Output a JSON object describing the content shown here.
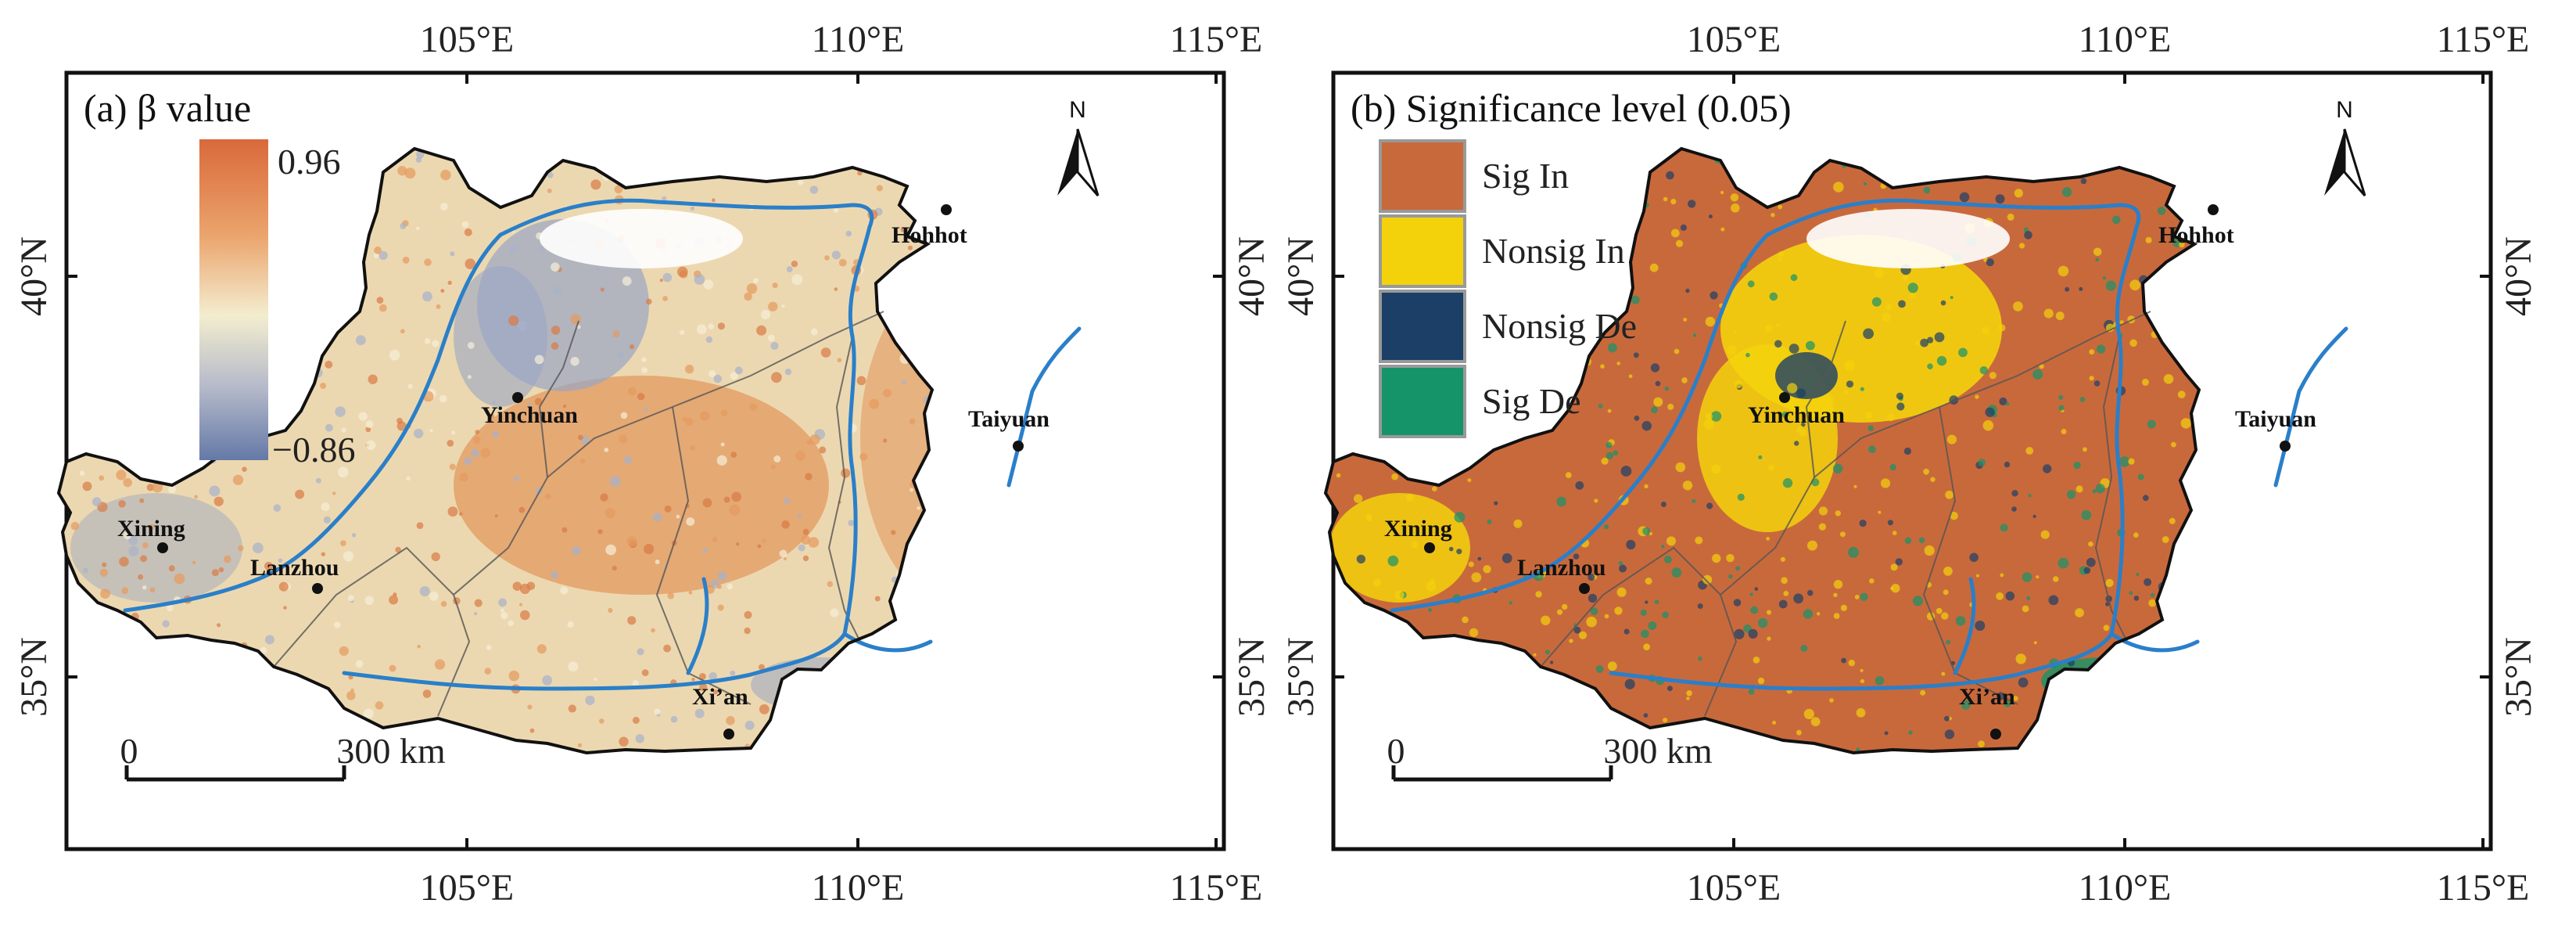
{
  "panels": [
    {
      "title": "(a) β value",
      "legend": {
        "type": "gradient",
        "max_label": "0.96",
        "min_label": "−0.86"
      },
      "colors": {
        "high": "#d9693a",
        "mid": "#f3edcf",
        "low": "#6479a6",
        "fill": "#ecd8b0",
        "patch": "#e39a60",
        "patch_low": "#9aa7c4"
      }
    },
    {
      "title": "(b) Significance level (0.05)",
      "legend": {
        "type": "categorical",
        "items": [
          {
            "label": "Sig In",
            "color": "#c8693c"
          },
          {
            "label": "Nonsig In",
            "color": "#f3d20c"
          },
          {
            "label": "Nonsig De",
            "color": "#1b3f66"
          },
          {
            "label": "Sig De",
            "color": "#159369"
          }
        ]
      },
      "colors": {
        "fill": "#c8693c",
        "patch": "#f3d20c",
        "patch_low": "#1b3f66"
      }
    }
  ],
  "axes": {
    "lon_labels": [
      "105°E",
      "110°E",
      "115°E"
    ],
    "lat_labels": [
      "40°N",
      "35°N"
    ]
  },
  "cities": [
    "Hohhot",
    "Yinchuan",
    "Taiyuan",
    "Xining",
    "Lanzhou",
    "Xi’an"
  ],
  "scale_bar": {
    "start": "0",
    "end": "300 km"
  },
  "north_arrow": {
    "label": "N"
  },
  "colors": {
    "river": "#2a7fc9",
    "border": "#111111",
    "province": "#555555"
  }
}
